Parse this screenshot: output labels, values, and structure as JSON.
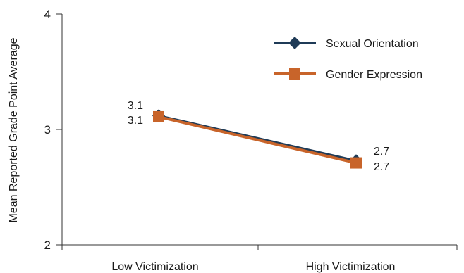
{
  "chart_data": {
    "type": "line",
    "categories": [
      "Low Victimization",
      "High Victimization"
    ],
    "ylabel": "Mean Reported Grade Point Average",
    "xlabel": "",
    "ylim": [
      2,
      4
    ],
    "yticks": [
      "2",
      "3",
      "4"
    ],
    "legend_position": "top-right",
    "grid": false,
    "series": [
      {
        "name": "Sexual Orientation",
        "values": [
          3.12,
          2.73
        ],
        "labels": [
          "3.1",
          "2.7"
        ],
        "color": "#1f3b57",
        "marker": "diamond"
      },
      {
        "name": "Gender Expression",
        "values": [
          3.11,
          2.71
        ],
        "labels": [
          "3.1",
          "2.7"
        ],
        "color": "#c8642a",
        "marker": "square"
      }
    ]
  }
}
